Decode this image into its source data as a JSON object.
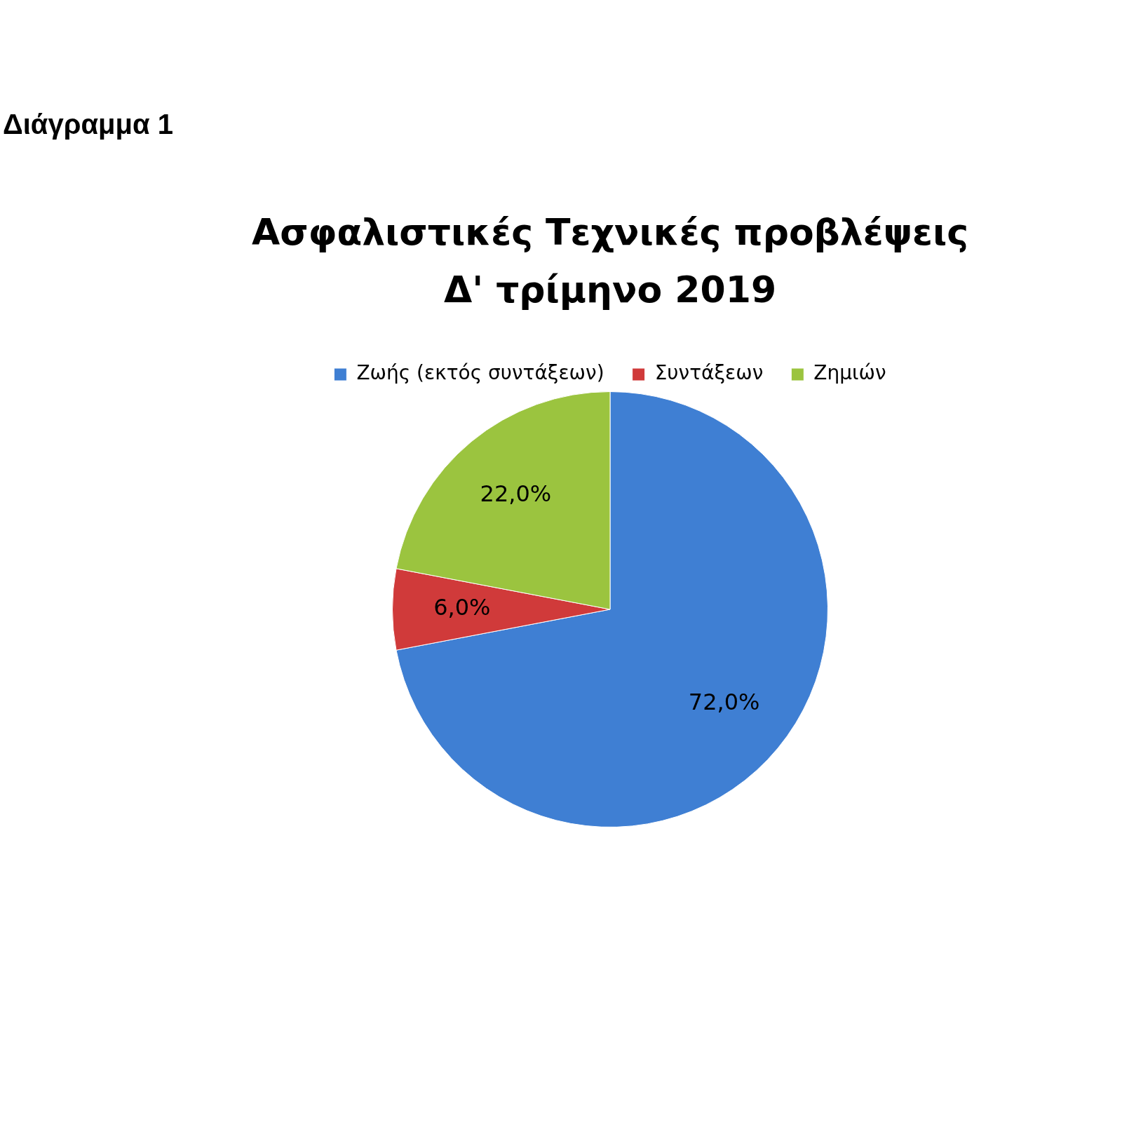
{
  "chart_data": {
    "type": "pie",
    "title": "Ασφαλιστικές Τεχνικές προβλέψεις\nΔ' τρίμηνο 2019",
    "annotations": [
      "Διάγραμμα 1"
    ],
    "categories": [
      "Ζωής (εκτός συντάξεων)",
      "Συντάξεων",
      "Ζημιών"
    ],
    "values": [
      72,
      6,
      22
    ],
    "colors": [
      "#3f7fd3",
      "#d03a3a",
      "#9bc43f"
    ],
    "value_labels": [
      "72,0%",
      "6,0%",
      "22,0%"
    ],
    "legend": "top"
  }
}
